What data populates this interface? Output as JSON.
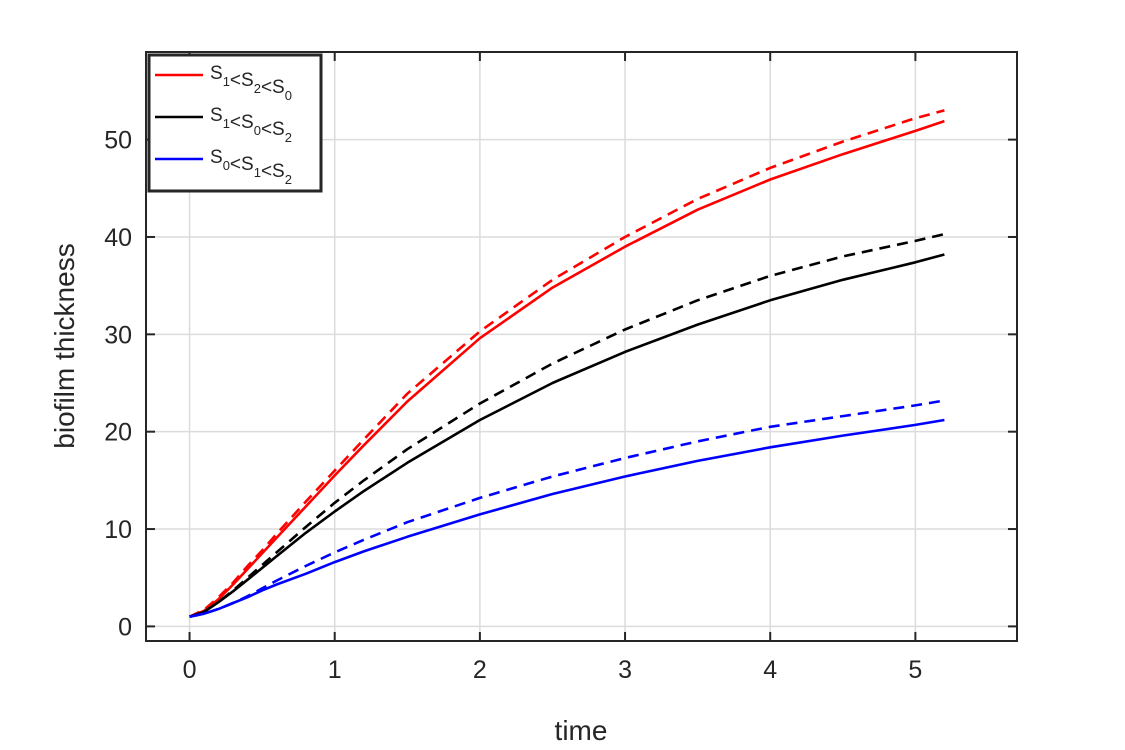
{
  "chart_data": {
    "type": "line",
    "xlabel": "time",
    "ylabel": "biofilm thickness",
    "xlim": [
      -0.3,
      5.7
    ],
    "ylim": [
      -1.5,
      59
    ],
    "xticks": [
      0,
      1,
      2,
      3,
      4,
      5
    ],
    "yticks": [
      0,
      10,
      20,
      30,
      40,
      50
    ],
    "grid": true,
    "legend_position": "top-left",
    "x": [
      0,
      0.1,
      0.2,
      0.3,
      0.4,
      0.5,
      0.6,
      0.8,
      1.0,
      1.2,
      1.5,
      2.0,
      2.5,
      3.0,
      3.5,
      4.0,
      4.5,
      5.0,
      5.2
    ],
    "series": [
      {
        "legend": [
          [
            "S",
            "1"
          ],
          [
            "<S",
            "2"
          ],
          [
            "<S",
            "0"
          ]
        ],
        "color": "#ff0000",
        "style": "solid",
        "values": [
          1.0,
          1.6,
          2.8,
          4.3,
          5.9,
          7.5,
          9.1,
          12.3,
          15.5,
          18.6,
          23.1,
          29.6,
          34.8,
          39.0,
          42.8,
          45.9,
          48.5,
          50.9,
          51.9
        ]
      },
      {
        "color": "#ff0000",
        "style": "dashed",
        "values": [
          1.0,
          1.7,
          3.0,
          4.5,
          6.2,
          7.8,
          9.5,
          12.8,
          16.0,
          19.2,
          23.9,
          30.3,
          35.6,
          40.0,
          43.9,
          47.1,
          49.8,
          52.2,
          53.0
        ]
      },
      {
        "legend": [
          [
            "S",
            "1"
          ],
          [
            "<S",
            "0"
          ],
          [
            "<S",
            "2"
          ]
        ],
        "color": "#000000",
        "style": "solid",
        "values": [
          1.0,
          1.5,
          2.5,
          3.6,
          4.8,
          6.0,
          7.2,
          9.6,
          11.8,
          13.9,
          16.8,
          21.2,
          25.0,
          28.2,
          31.0,
          33.5,
          35.6,
          37.4,
          38.2
        ]
      },
      {
        "color": "#000000",
        "style": "dashed",
        "values": [
          1.0,
          1.5,
          2.5,
          3.7,
          5.0,
          6.3,
          7.6,
          10.2,
          12.7,
          15.0,
          18.2,
          22.9,
          27.0,
          30.5,
          33.5,
          36.0,
          38.0,
          39.6,
          40.3
        ]
      },
      {
        "legend": [
          [
            "S",
            "0"
          ],
          [
            "<S",
            "1"
          ],
          [
            "<S",
            "2"
          ]
        ],
        "color": "#0000ff",
        "style": "solid",
        "values": [
          1.0,
          1.3,
          1.8,
          2.4,
          3.0,
          3.7,
          4.3,
          5.4,
          6.6,
          7.7,
          9.2,
          11.5,
          13.6,
          15.4,
          17.0,
          18.4,
          19.6,
          20.7,
          21.2
        ]
      },
      {
        "color": "#0000ff",
        "style": "dashed",
        "values": [
          1.0,
          1.3,
          1.8,
          2.4,
          3.1,
          3.9,
          4.7,
          6.2,
          7.6,
          8.9,
          10.7,
          13.2,
          15.4,
          17.3,
          19.0,
          20.5,
          21.6,
          22.7,
          23.2
        ]
      }
    ]
  }
}
